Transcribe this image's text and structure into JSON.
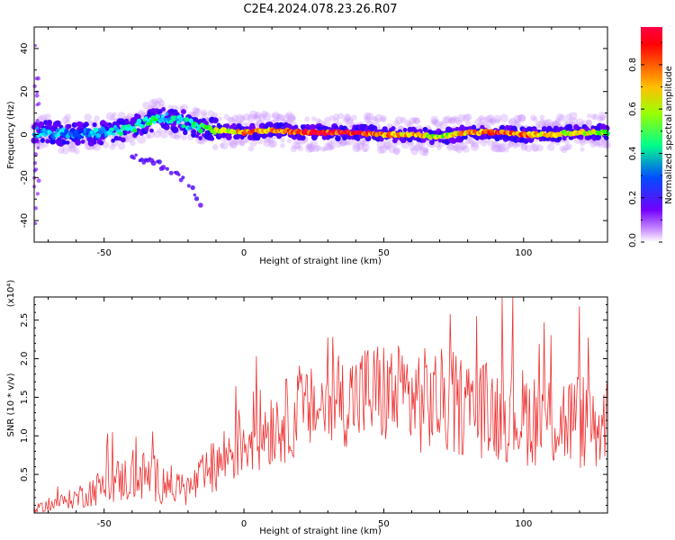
{
  "title": "C2E4.2024.078.23.26.R07",
  "chart_data": [
    {
      "type": "heatmap",
      "xlabel": "Height of straight line (km)",
      "ylabel": "Frequency (Hz)",
      "xlim": [
        -75,
        130
      ],
      "ylim": [
        -50,
        50
      ],
      "x_ticks": [
        -50,
        0,
        50,
        100
      ],
      "y_ticks": [
        -40,
        -20,
        0,
        20,
        40
      ],
      "colorbar": {
        "label": "Normalized spectral amplitude",
        "range": [
          0,
          1
        ],
        "ticks": [
          0.0,
          0.2,
          0.4,
          0.6,
          0.8
        ],
        "tick_labels": [
          "0.0",
          "0.2",
          "0.4",
          "0.6",
          "0.8"
        ],
        "colormap": [
          "#ffffff",
          "#8800ff",
          "#0000ff",
          "#00ffff",
          "#00ff00",
          "#ffff00",
          "#ff8800",
          "#ff0000",
          "#ff0066"
        ]
      },
      "ridge": {
        "x": [
          -75,
          -60,
          -50,
          -40,
          -35,
          -30,
          -25,
          -20,
          -15,
          -10,
          0,
          10,
          20,
          30,
          40,
          50,
          60,
          70,
          80,
          90,
          100,
          110,
          120,
          130
        ],
        "frequency": [
          1,
          0,
          1,
          3,
          6,
          8,
          7,
          5,
          3,
          2,
          1,
          2,
          1,
          1,
          1,
          0,
          0,
          -1,
          1,
          1,
          0,
          0,
          1,
          1
        ],
        "amplitude": [
          0.35,
          0.35,
          0.38,
          0.45,
          0.48,
          0.45,
          0.4,
          0.42,
          0.5,
          0.6,
          0.8,
          0.8,
          0.9,
          0.95,
          0.95,
          0.8,
          0.75,
          0.6,
          0.8,
          0.9,
          0.85,
          0.7,
          0.65,
          0.6
        ]
      },
      "secondary_branch": {
        "x": [
          -40,
          -35,
          -30,
          -25,
          -20,
          -15
        ],
        "frequency": [
          -10,
          -12,
          -14,
          -18,
          -22,
          -34
        ]
      }
    },
    {
      "type": "line",
      "xlabel": "Height of straight line (km)",
      "ylabel": "SNR (10 * v/v)",
      "y_scale_label": "(x10⁴)",
      "xlim": [
        -75,
        130
      ],
      "ylim": [
        0,
        2.8
      ],
      "x_ticks": [
        -50,
        0,
        50,
        100
      ],
      "y_ticks": [
        0.5,
        1.0,
        1.5,
        2.0,
        2.5
      ],
      "y_tick_labels": [
        "0.5",
        "1.0",
        "1.5",
        "2.0",
        "2.5"
      ],
      "series": [
        {
          "color": "#ee3333",
          "x": [
            -75,
            -70,
            -65,
            -60,
            -55,
            -50,
            -45,
            -40,
            -35,
            -30,
            -25,
            -20,
            -15,
            -10,
            -5,
            0,
            5,
            10,
            15,
            20,
            25,
            30,
            35,
            40,
            45,
            50,
            55,
            60,
            65,
            70,
            75,
            80,
            85,
            90,
            95,
            100,
            105,
            110,
            115,
            120,
            125,
            130
          ],
          "values": [
            0.05,
            0.1,
            0.15,
            0.2,
            0.28,
            0.35,
            0.42,
            0.45,
            0.48,
            0.42,
            0.35,
            0.3,
            0.45,
            0.6,
            0.8,
            0.95,
            1.05,
            1.15,
            1.2,
            1.3,
            1.35,
            1.4,
            1.45,
            1.5,
            1.55,
            1.55,
            1.5,
            1.5,
            1.45,
            1.45,
            1.4,
            1.4,
            1.35,
            1.3,
            1.3,
            1.25,
            1.25,
            1.2,
            1.2,
            1.2,
            1.15,
            1.15
          ],
          "spread": [
            0.05,
            0.08,
            0.1,
            0.15,
            0.2,
            0.25,
            0.3,
            0.32,
            0.35,
            0.3,
            0.25,
            0.22,
            0.3,
            0.4,
            0.45,
            0.5,
            0.55,
            0.55,
            0.55,
            0.55,
            0.55,
            0.6,
            0.6,
            0.65,
            0.7,
            0.7,
            0.7,
            0.75,
            0.7,
            0.7,
            0.7,
            0.65,
            0.65,
            0.65,
            0.65,
            0.65,
            0.65,
            0.65,
            0.65,
            0.65,
            0.65,
            0.65
          ]
        }
      ]
    }
  ]
}
